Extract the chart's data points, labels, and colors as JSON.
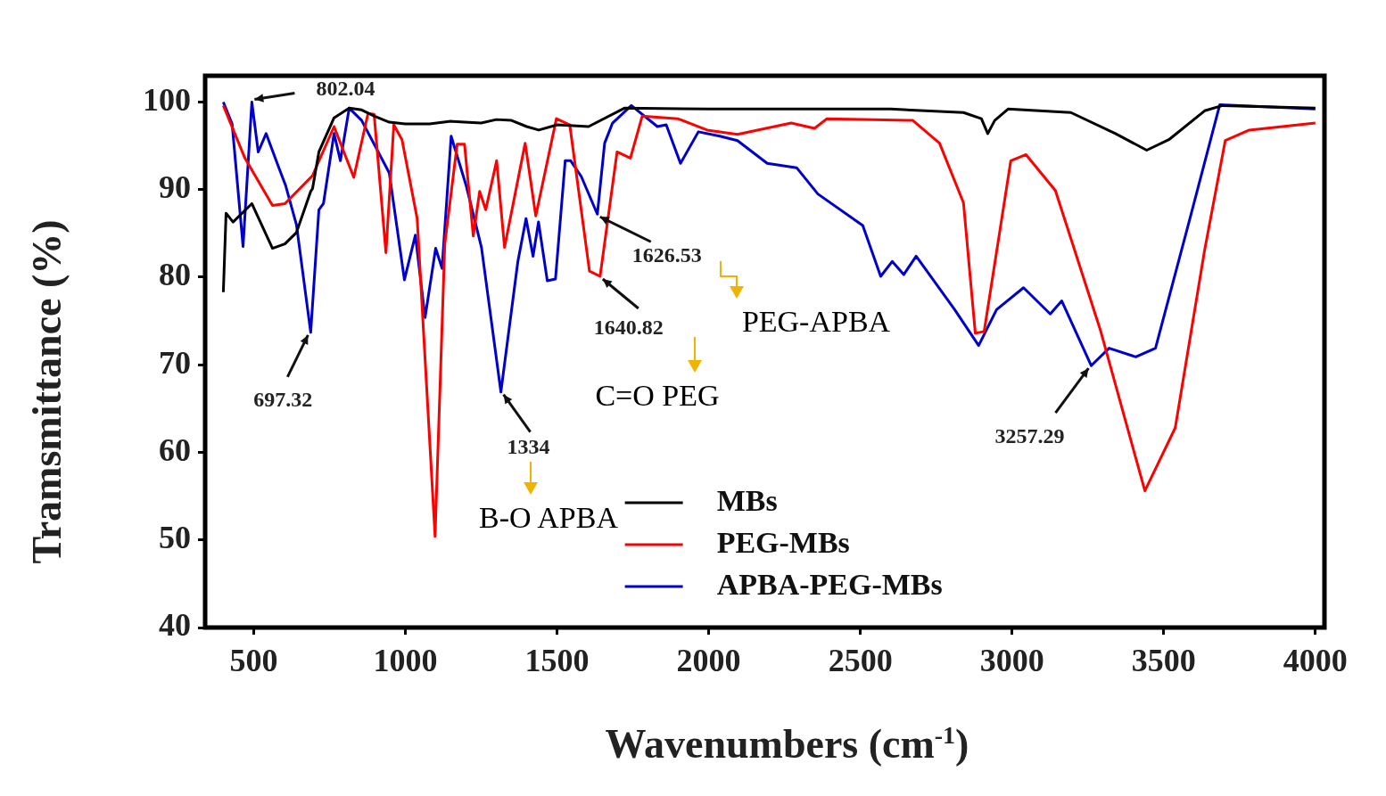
{
  "chart_data": {
    "type": "line",
    "xlabel": "Wavenumbers (cm$^{-1}$)",
    "ylabel": "Tramsmittance (%)",
    "xlim": [
      340,
      4030
    ],
    "ylim": [
      40,
      103
    ],
    "xticks": [
      500,
      1000,
      1500,
      2000,
      2500,
      3000,
      3500,
      4000
    ],
    "yticks": [
      40,
      50,
      60,
      70,
      80,
      90,
      100
    ],
    "grid": false,
    "legend": "bottom",
    "marker": "none",
    "line_style": "solid",
    "series": [
      {
        "name": "MBs",
        "color": "#000000",
        "x": [
          400,
          409,
          432,
          494,
          562,
          603,
          641,
          688,
          694,
          715,
          765,
          815,
          856,
          897,
          947,
          1000,
          1080,
          1150,
          1195,
          1250,
          1300,
          1350,
          1400,
          1440,
          1501,
          1604,
          1722,
          2000,
          2300,
          2600,
          2840,
          2899,
          2920,
          2943,
          2987,
          3194,
          3341,
          3444,
          3517,
          3635,
          3694,
          4000
        ],
        "values": [
          78.3,
          87.3,
          86.3,
          88.4,
          83.3,
          83.8,
          85.1,
          89.8,
          90.1,
          94.3,
          98.2,
          99.3,
          99.1,
          98.4,
          97.7,
          97.5,
          97.5,
          97.8,
          97.7,
          97.6,
          98.0,
          97.9,
          97.2,
          96.8,
          97.4,
          97.2,
          99.3,
          99.2,
          99.2,
          99.2,
          98.8,
          98.1,
          96.4,
          97.9,
          99.2,
          98.8,
          96.4,
          94.5,
          95.7,
          99.0,
          99.6,
          99.3
        ]
      },
      {
        "name": "PEG-MBs",
        "color": "#ff0000",
        "x": [
          400,
          471,
          562,
          603,
          694,
          765,
          830,
          877,
          897,
          936,
          962,
          989,
          1039,
          1098,
          1130,
          1171,
          1195,
          1224,
          1245,
          1265,
          1301,
          1327,
          1395,
          1430,
          1498,
          1542,
          1607,
          1642,
          1698,
          1742,
          1781,
          1898,
          1995,
          2095,
          2272,
          2349,
          2390,
          2673,
          2761,
          2840,
          2879,
          2908,
          2996,
          3046,
          3143,
          3291,
          3438,
          3538,
          3635,
          3703,
          3782,
          4000
        ],
        "values": [
          99.6,
          93.6,
          88.2,
          88.4,
          91.6,
          97.2,
          91.4,
          98.7,
          98.6,
          82.8,
          97.4,
          95.7,
          86.7,
          50.4,
          83.8,
          95.2,
          95.2,
          84.7,
          89.8,
          87.7,
          93.3,
          83.4,
          95.3,
          87.0,
          98.1,
          97.4,
          80.7,
          80.1,
          94.3,
          93.6,
          98.4,
          98.1,
          96.8,
          96.3,
          97.6,
          97.0,
          98.1,
          97.9,
          95.3,
          88.5,
          73.6,
          73.8,
          93.3,
          94.0,
          89.9,
          74.0,
          55.6,
          62.8,
          83.1,
          95.6,
          96.8,
          97.6
        ]
      },
      {
        "name": "APBA-PEG-MBs",
        "color": "#0000cc",
        "x": [
          400,
          429,
          465,
          494,
          515,
          541,
          582,
          606,
          641,
          688,
          715,
          730,
          765,
          786,
          815,
          856,
          947,
          997,
          1033,
          1065,
          1100,
          1121,
          1151,
          1201,
          1251,
          1315,
          1371,
          1398,
          1421,
          1439,
          1468,
          1495,
          1527,
          1545,
          1580,
          1633,
          1657,
          1683,
          1745,
          1831,
          1860,
          1907,
          1966,
          2037,
          2095,
          2193,
          2290,
          2360,
          2508,
          2567,
          2605,
          2643,
          2684,
          2811,
          2890,
          2949,
          3038,
          3126,
          3164,
          3261,
          3320,
          3408,
          3473,
          3585,
          3685,
          4000
        ],
        "values": [
          100,
          97.5,
          83.5,
          100,
          94.3,
          96.4,
          92.6,
          90.4,
          86.0,
          73.7,
          87.7,
          88.4,
          96.4,
          93.3,
          99.3,
          97.9,
          91.9,
          79.7,
          84.8,
          75.4,
          83.3,
          81.0,
          96.1,
          90.4,
          83.4,
          66.9,
          81.8,
          86.7,
          82.4,
          86.3,
          79.6,
          79.8,
          93.3,
          93.3,
          91.5,
          87.2,
          95.3,
          97.6,
          99.6,
          97.2,
          97.4,
          93.0,
          96.6,
          96.1,
          95.6,
          93.0,
          92.5,
          89.5,
          85.9,
          80.1,
          81.8,
          80.3,
          82.4,
          76.3,
          72.2,
          76.3,
          78.8,
          75.8,
          77.3,
          69.9,
          71.9,
          70.9,
          71.9,
          86.5,
          99.7,
          99.2
        ]
      }
    ],
    "annotations": [
      {
        "text": "802.04",
        "x": 494,
        "y": 100
      },
      {
        "text": "697.32",
        "x": 688,
        "y": 73.7
      },
      {
        "text": "1334",
        "x": 1315,
        "y": 66.9
      },
      {
        "text": "1626.53",
        "x": 1633,
        "y": 87.2
      },
      {
        "text": "1640.82",
        "x": 1642,
        "y": 80.1
      },
      {
        "text": "3257.29",
        "x": 3261,
        "y": 69.9
      },
      "PEG-APBA",
      "C=O PEG",
      "B-O APBA"
    ]
  }
}
